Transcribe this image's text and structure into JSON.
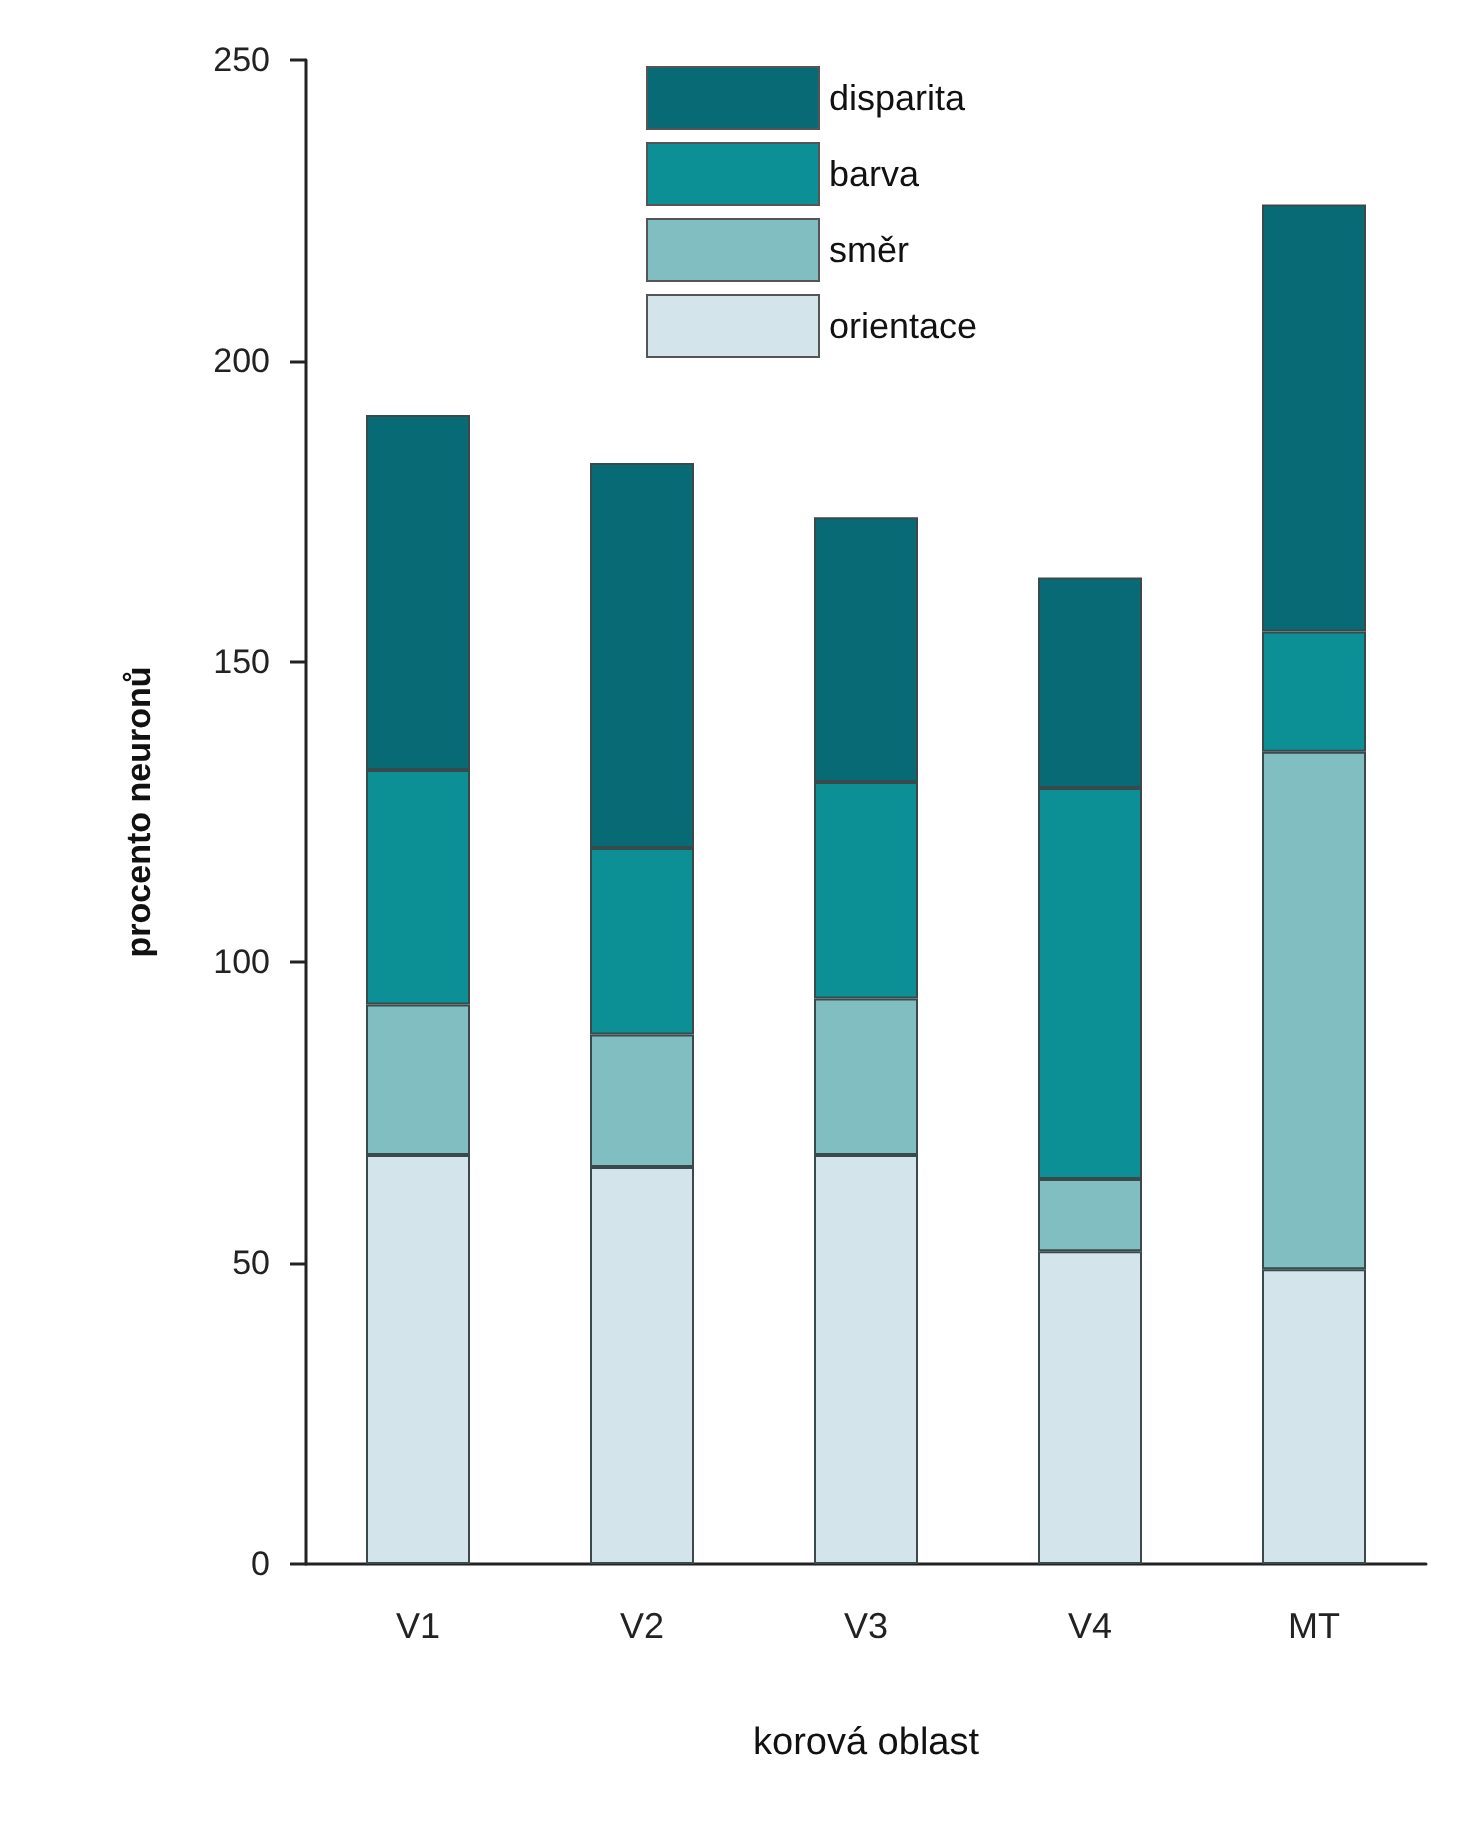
{
  "chart_data": {
    "type": "bar",
    "stacked": true,
    "xlabel": "korová oblast",
    "ylabel": "procento neuronů",
    "categories": [
      "V1",
      "V2",
      "V3",
      "V4",
      "MT"
    ],
    "series": [
      {
        "name": "orientace",
        "color": "#d3e5ea",
        "values": [
          68,
          66,
          68,
          52,
          49
        ]
      },
      {
        "name": "směr",
        "color": "#80bec2",
        "values": [
          25,
          22,
          26,
          12,
          86
        ]
      },
      {
        "name": "barva",
        "color": "#0c9096",
        "values": [
          39,
          31,
          36,
          65,
          20
        ]
      },
      {
        "name": "disparita",
        "color": "#086a74",
        "values": [
          59,
          64,
          44,
          35,
          71
        ]
      }
    ],
    "ylim": [
      0,
      250
    ],
    "yticks": [
      0,
      50,
      100,
      150,
      200,
      250
    ],
    "grid": false,
    "legend": "top"
  }
}
